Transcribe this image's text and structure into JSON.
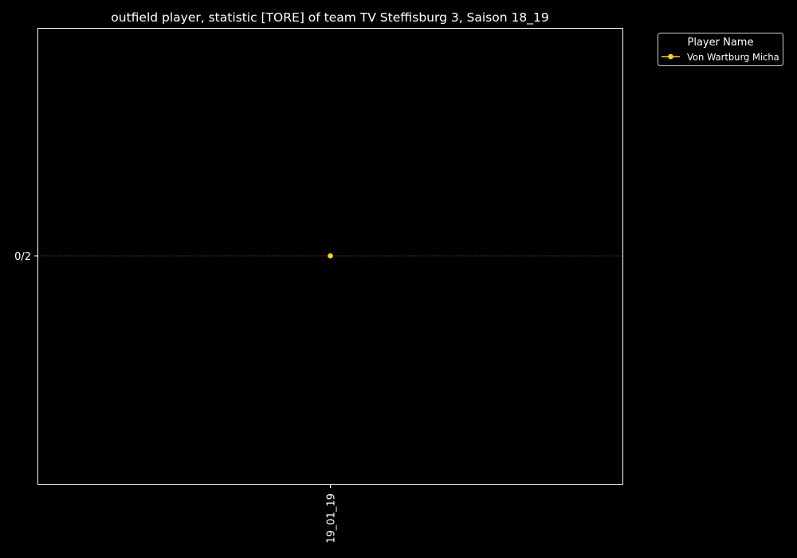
{
  "chart_data": {
    "type": "line",
    "title": "outfield player, statistic [TORE] of team TV Steffisburg 3, Saison 18_19",
    "xlabel": "",
    "ylabel": "",
    "categories": [
      "19_01_19"
    ],
    "y_categories": [
      "0/2"
    ],
    "series": [
      {
        "name": "Von Wartburg Micha",
        "color": "#ffd21f",
        "points": [
          {
            "x": "19_01_19",
            "y": "0/2"
          }
        ]
      }
    ],
    "legend": {
      "title": "Player Name",
      "placement": "outside-top-right"
    },
    "grid": "horizontal dotted",
    "colors": {
      "background": "#000000",
      "foreground": "#ffffff",
      "grid": "#888888"
    }
  }
}
